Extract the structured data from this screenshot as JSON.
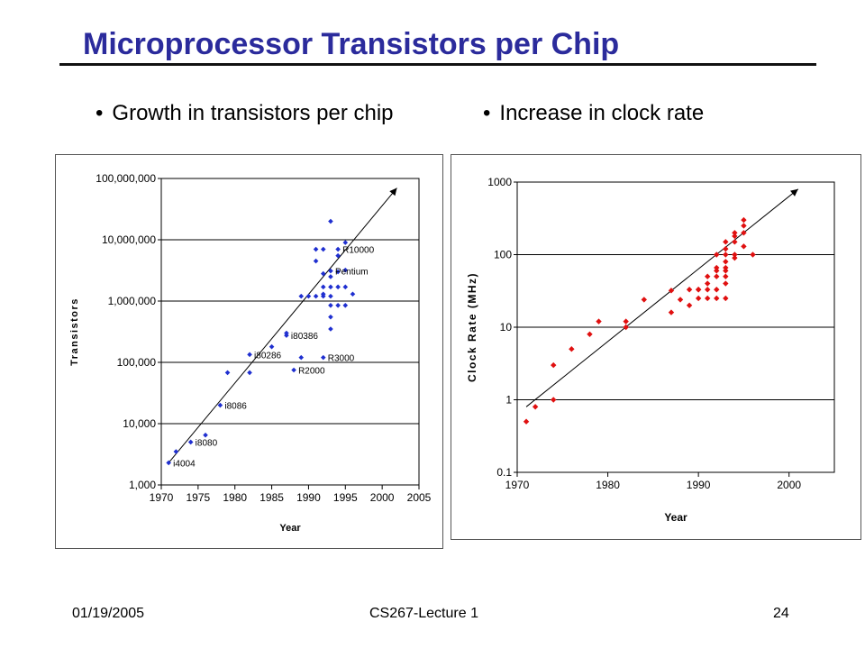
{
  "slide": {
    "title": "Microprocessor Transistors per Chip",
    "bullets": [
      "Growth in transistors per chip",
      "Increase in clock rate"
    ],
    "footer": {
      "date": "01/19/2005",
      "course": "CS267-Lecture 1",
      "page": "24"
    }
  },
  "colors": {
    "title": "#2b2b9c",
    "transistor_points": "#1f2fd0",
    "clock_points": "#e01010",
    "grid": "#000000"
  },
  "chart_data": [
    {
      "type": "scatter",
      "title": "",
      "xlabel": "Year",
      "ylabel": "Transistors",
      "xlim": [
        1970,
        2005
      ],
      "ylim": [
        1000,
        100000000
      ],
      "y_scale": "log",
      "x_ticks": [
        "1970",
        "1975",
        "1980",
        "1985",
        "1990",
        "1995",
        "2000",
        "2005"
      ],
      "y_ticks": [
        "1,000",
        "10,000",
        "100,000",
        "1,000,000",
        "10,000,000",
        "100,000,000"
      ],
      "grid": "horizontal",
      "trend_line": {
        "from": [
          1971,
          2300
        ],
        "to": [
          2002,
          70000000
        ],
        "arrow": true
      },
      "series": [
        {
          "points": [
            [
              1971,
              2300
            ],
            [
              1972,
              3500
            ],
            [
              1974,
              5000
            ],
            [
              1976,
              6500
            ],
            [
              1978,
              20000
            ],
            [
              1979,
              68000
            ],
            [
              1982,
              134000
            ],
            [
              1982,
              68000
            ],
            [
              1985,
              180000
            ],
            [
              1987,
              275000
            ],
            [
              1987,
              300000
            ],
            [
              1988,
              75000
            ],
            [
              1989,
              120000
            ],
            [
              1989,
              1200000
            ],
            [
              1990,
              1200000
            ],
            [
              1991,
              1200000
            ],
            [
              1991,
              7000000
            ],
            [
              1991,
              4500000
            ],
            [
              1992,
              120000
            ],
            [
              1992,
              7000000
            ],
            [
              1992,
              2800000
            ],
            [
              1992,
              1700000
            ],
            [
              1992,
              1200000
            ],
            [
              1992,
              1300000
            ],
            [
              1993,
              3100000
            ],
            [
              1993,
              2500000
            ],
            [
              1993,
              1700000
            ],
            [
              1993,
              1200000
            ],
            [
              1993,
              850000
            ],
            [
              1993,
              550000
            ],
            [
              1993,
              350000
            ],
            [
              1993,
              20000000
            ],
            [
              1994,
              7000000
            ],
            [
              1994,
              3000000
            ],
            [
              1994,
              1700000
            ],
            [
              1994,
              850000
            ],
            [
              1994,
              5500000
            ],
            [
              1995,
              9000000
            ],
            [
              1995,
              1700000
            ],
            [
              1995,
              3200000
            ],
            [
              1995,
              850000
            ],
            [
              1996,
              1300000
            ]
          ]
        }
      ],
      "annotations": [
        {
          "text": "i4004",
          "at": [
            1971,
            2300
          ]
        },
        {
          "text": "i8080",
          "at": [
            1974,
            5000
          ]
        },
        {
          "text": "i8086",
          "at": [
            1978,
            20000
          ]
        },
        {
          "text": "i80286",
          "at": [
            1982,
            134000
          ]
        },
        {
          "text": "i80386",
          "at": [
            1987,
            275000
          ]
        },
        {
          "text": "R2000",
          "at": [
            1988,
            75000
          ]
        },
        {
          "text": "R3000",
          "at": [
            1992,
            120000
          ]
        },
        {
          "text": "Pentium",
          "at": [
            1993,
            3100000
          ]
        },
        {
          "text": "R10000",
          "at": [
            1994,
            7000000
          ]
        }
      ]
    },
    {
      "type": "scatter",
      "title": "",
      "xlabel": "Year",
      "ylabel": "Clock Rate (MHz)",
      "xlim": [
        1970,
        2005
      ],
      "ylim": [
        0.1,
        1000
      ],
      "y_scale": "log",
      "x_ticks": [
        "1970",
        "1980",
        "1990",
        "2000"
      ],
      "y_ticks": [
        "0.1",
        "1",
        "10",
        "100",
        "1000"
      ],
      "grid": "horizontal",
      "trend_line": {
        "from": [
          1971,
          0.8
        ],
        "to": [
          2001,
          800
        ],
        "arrow": true
      },
      "series": [
        {
          "points": [
            [
              1971,
              0.5
            ],
            [
              1972,
              0.8
            ],
            [
              1974,
              1.0
            ],
            [
              1974,
              3.0
            ],
            [
              1976,
              5.0
            ],
            [
              1978,
              8.0
            ],
            [
              1979,
              12.0
            ],
            [
              1982,
              12.0
            ],
            [
              1982,
              10.0
            ],
            [
              1984,
              24.0
            ],
            [
              1987,
              16.0
            ],
            [
              1987,
              32.0
            ],
            [
              1988,
              24.0
            ],
            [
              1989,
              20.0
            ],
            [
              1989,
              33.0
            ],
            [
              1990,
              33.0
            ],
            [
              1990,
              33.0
            ],
            [
              1990,
              25.0
            ],
            [
              1991,
              25.0
            ],
            [
              1991,
              33.0
            ],
            [
              1991,
              40.0
            ],
            [
              1991,
              50.0
            ],
            [
              1992,
              25.0
            ],
            [
              1992,
              33.0
            ],
            [
              1992,
              50.0
            ],
            [
              1992,
              60.0
            ],
            [
              1992,
              66.0
            ],
            [
              1992,
              100.0
            ],
            [
              1993,
              25.0
            ],
            [
              1993,
              40.0
            ],
            [
              1993,
              50.0
            ],
            [
              1993,
              60.0
            ],
            [
              1993,
              66.0
            ],
            [
              1993,
              80.0
            ],
            [
              1993,
              100.0
            ],
            [
              1993,
              120.0
            ],
            [
              1993,
              150.0
            ],
            [
              1994,
              90.0
            ],
            [
              1994,
              100.0
            ],
            [
              1994,
              150.0
            ],
            [
              1994,
              180.0
            ],
            [
              1994,
              200.0
            ],
            [
              1995,
              130.0
            ],
            [
              1995,
              200.0
            ],
            [
              1995,
              250.0
            ],
            [
              1995,
              300.0
            ],
            [
              1996,
              100.0
            ]
          ]
        }
      ]
    }
  ]
}
